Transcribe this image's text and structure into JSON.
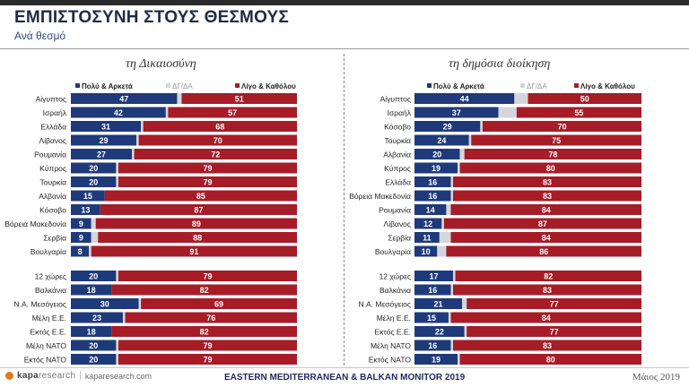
{
  "header": {
    "title": "ΕΜΠΙΣΤΟΣΥΝΗ ΣΤΟΥΣ ΘΕΣΜΟΥΣ",
    "subtitle": "Ανά θεσμό"
  },
  "colors": {
    "positive": "#1f3a7a",
    "neutral": "#d4d6dc",
    "negative": "#a61c27"
  },
  "chart_data": [
    {
      "type": "bar",
      "orientation": "horizontal",
      "stacked": true,
      "title": "τη Δικαιοσύνη",
      "legend": [
        "Πολύ & Αρκετά",
        "ΔΓ/ΔΑ",
        "Λίγο & Καθόλου"
      ],
      "legend_position": "top",
      "groups": [
        {
          "categories": [
            "Αίγυπτος",
            "Ισραήλ",
            "Ελλάδα",
            "Λίβανος",
            "Ρουμανία",
            "Κύπρος",
            "Τουρκία",
            "Αλβανία",
            "Κόσοβο",
            "Βόρεια Μακεδονία",
            "Σερβία",
            "Βουλγαρία"
          ],
          "series": [
            {
              "name": "Πολύ & Αρκετά",
              "values": [
                47,
                42,
                31,
                29,
                27,
                20,
                20,
                15,
                13,
                9,
                9,
                8
              ]
            },
            {
              "name": "ΔΓ/ΔΑ",
              "values": [
                2,
                1,
                1,
                1,
                1,
                1,
                1,
                0,
                0,
                2,
                3,
                1
              ]
            },
            {
              "name": "Λίγο & Καθόλου",
              "values": [
                51,
                57,
                68,
                70,
                72,
                79,
                79,
                85,
                87,
                89,
                88,
                91
              ]
            }
          ]
        },
        {
          "categories": [
            "12 χώρες",
            "Βαλκάνια",
            "Ν.Α. Μεσόγειος",
            "Μέλη Ε.Ε.",
            "Εκτός Ε.Ε.",
            "Μέλη ΝΑΤΟ",
            "Εκτός ΝΑΤΟ"
          ],
          "series": [
            {
              "name": "Πολύ & Αρκετά",
              "values": [
                20,
                18,
                30,
                23,
                18,
                20,
                20
              ]
            },
            {
              "name": "ΔΓ/ΔΑ",
              "values": [
                1,
                0,
                1,
                1,
                0,
                1,
                1
              ]
            },
            {
              "name": "Λίγο & Καθόλου",
              "values": [
                79,
                82,
                69,
                76,
                82,
                79,
                79
              ]
            }
          ]
        }
      ],
      "xlim": [
        0,
        100
      ]
    },
    {
      "type": "bar",
      "orientation": "horizontal",
      "stacked": true,
      "title": "τη δημόσια διοίκηση",
      "legend": [
        "Πολύ & Αρκετά",
        "ΔΓ/ΔΑ",
        "Λίγο & Καθόλου"
      ],
      "legend_position": "top",
      "groups": [
        {
          "categories": [
            "Αίγυπτος",
            "Ισραήλ",
            "Κόσοβο",
            "Τουρκία",
            "Αλβανία",
            "Κύπρος",
            "Ελλάδα",
            "Βόρεια Μακεδονία",
            "Ρουμανία",
            "Λίβανος",
            "Σερβία",
            "Βουλγαρία"
          ],
          "series": [
            {
              "name": "Πολύ & Αρκετά",
              "values": [
                44,
                37,
                29,
                24,
                20,
                19,
                16,
                16,
                14,
                12,
                11,
                10
              ]
            },
            {
              "name": "ΔΓ/ΔΑ",
              "values": [
                6,
                8,
                1,
                1,
                2,
                1,
                1,
                1,
                2,
                1,
                5,
                4
              ]
            },
            {
              "name": "Λίγο & Καθόλου",
              "values": [
                50,
                55,
                70,
                75,
                78,
                80,
                83,
                83,
                84,
                87,
                84,
                86
              ]
            }
          ]
        },
        {
          "categories": [
            "12 χώρες",
            "Βαλκάνια",
            "Ν.Α. Μεσόγειος",
            "Μέλη Ε.Ε.",
            "Εκτός Ε.Ε.",
            "Μέλη ΝΑΤΟ",
            "Εκτός ΝΑΤΟ"
          ],
          "series": [
            {
              "name": "Πολύ & Αρκετά",
              "values": [
                17,
                16,
                21,
                15,
                22,
                16,
                19
              ]
            },
            {
              "name": "ΔΓ/ΔΑ",
              "values": [
                1,
                1,
                2,
                1,
                1,
                1,
                1
              ]
            },
            {
              "name": "Λίγο & Καθόλου",
              "values": [
                82,
                83,
                77,
                84,
                77,
                83,
                80
              ]
            }
          ]
        }
      ],
      "xlim": [
        0,
        100
      ]
    }
  ],
  "footer": {
    "brand": "kapa",
    "brand_suffix": "research",
    "url": "kaparesearch.com",
    "monitor": "EASTERN MEDITERRANEAN & BALKAN MONITOR 2019",
    "date": "Μάιος 2019"
  }
}
